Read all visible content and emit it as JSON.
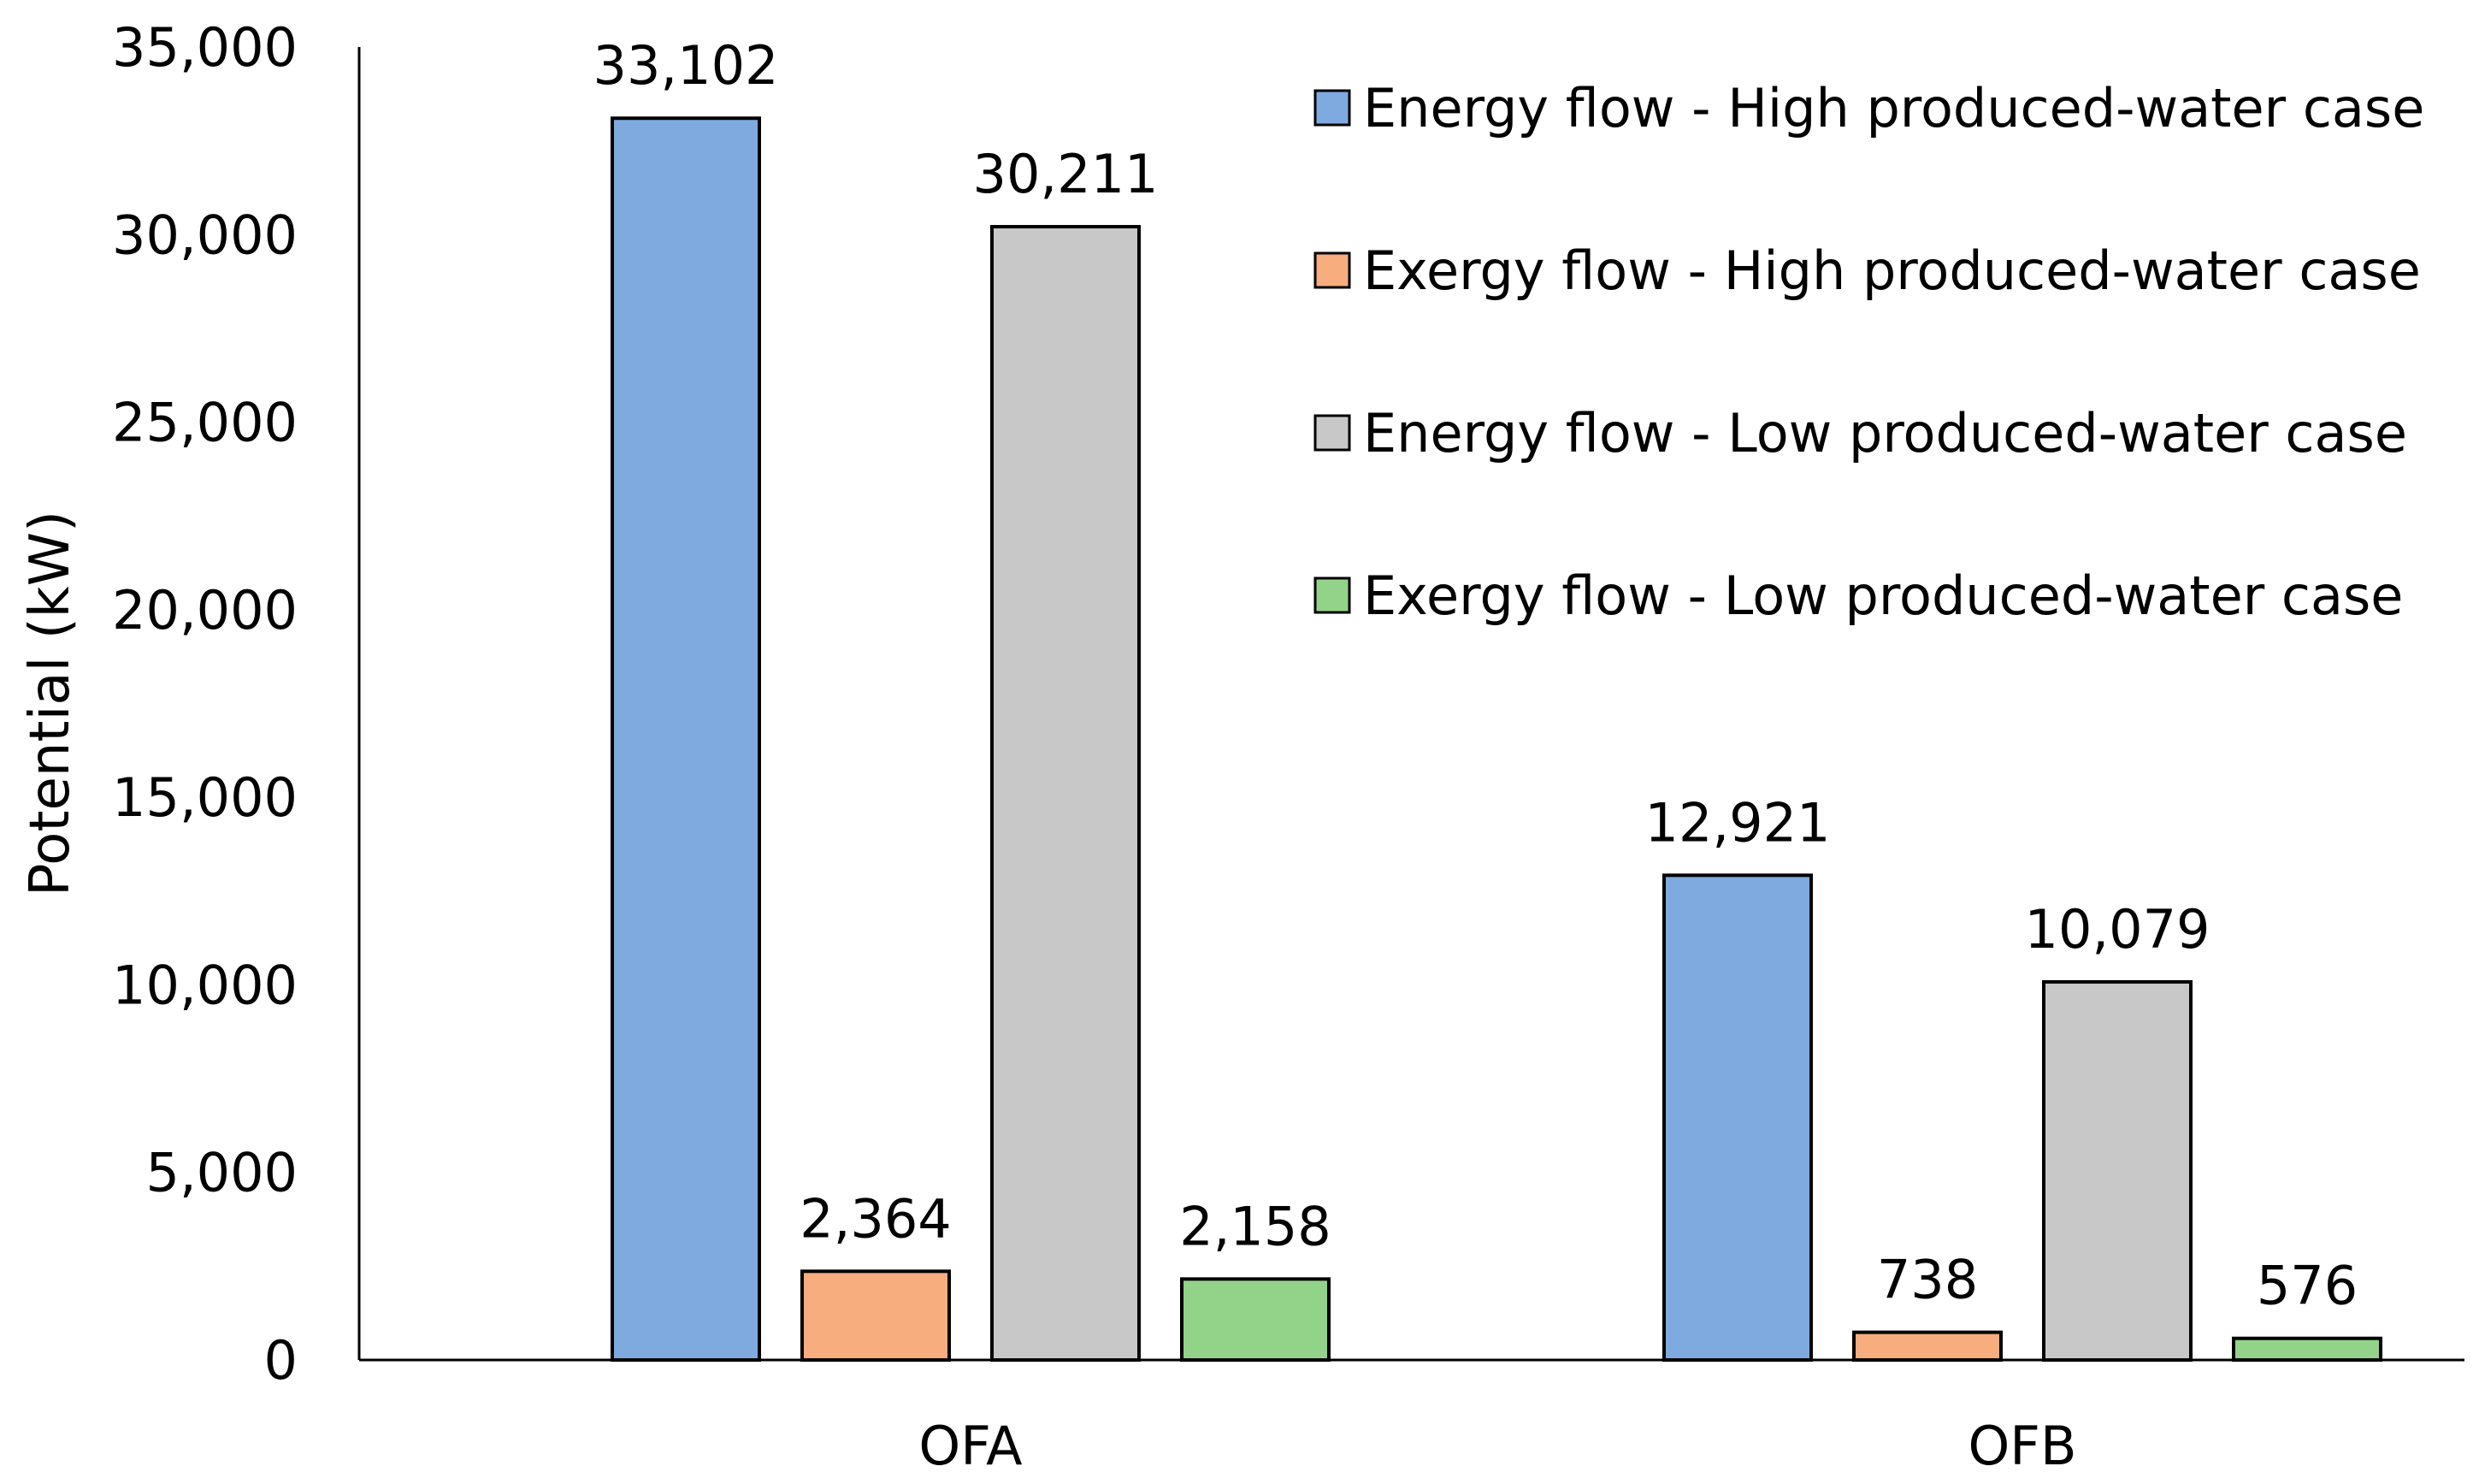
{
  "chart_data": {
    "type": "bar",
    "title": "",
    "xlabel": "",
    "ylabel": "Potential (kW)",
    "categories": [
      "OFA",
      "OFB"
    ],
    "series": [
      {
        "name": "Energy flow - High produced-water case",
        "values": [
          33102,
          12921
        ],
        "labels": [
          "33,102",
          "12,921"
        ],
        "color": "#7faadf"
      },
      {
        "name": "Exergy flow - High produced-water case",
        "values": [
          2364,
          738
        ],
        "labels": [
          "2,364",
          "738"
        ],
        "color": "#f8ad7e"
      },
      {
        "name": "Energy flow - Low produced-water case",
        "values": [
          30211,
          10079
        ],
        "labels": [
          "30,211",
          "10,079"
        ],
        "color": "#c8c8c8"
      },
      {
        "name": "Exergy flow - Low produced-water case",
        "values": [
          2158,
          576
        ],
        "labels": [
          "2,158",
          "576"
        ],
        "color": "#93d389"
      }
    ],
    "ylim": [
      0,
      35000
    ],
    "yticks": [
      0,
      5000,
      10000,
      15000,
      20000,
      25000,
      30000,
      35000
    ],
    "ytick_labels": [
      "0",
      "5,000",
      "10,000",
      "15,000",
      "20,000",
      "25,000",
      "30,000",
      "35,000"
    ],
    "grid": false,
    "legend_position": "top-right",
    "data_labels": true
  }
}
